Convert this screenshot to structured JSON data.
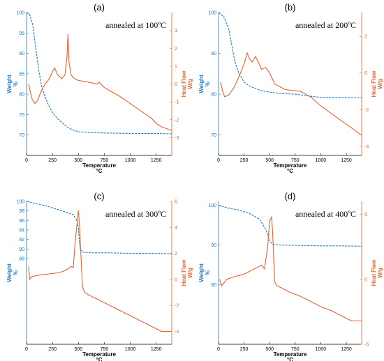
{
  "colors": {
    "weight": "#1f78c8",
    "heat": "#e8612c",
    "axis": "#000000"
  },
  "chart_data": [
    {
      "type": "line",
      "panel_label": "(a)",
      "annotation": "annealed at 100ºC",
      "xlabel": "Temperature",
      "xunit": "°C",
      "xlim": [
        0,
        1400
      ],
      "xticks": [
        0,
        250,
        500,
        750,
        1000,
        1250
      ],
      "left_axis": {
        "label": "Weight",
        "unit": "%",
        "ylim": [
          65,
          100
        ],
        "ticks": [
          70,
          75,
          80,
          85,
          90,
          95,
          100
        ]
      },
      "right_axis": {
        "label": "Heat Flow",
        "unit": "W/g",
        "ylim": [
          -4,
          4
        ],
        "ticks": [
          -3,
          -2,
          -1,
          0,
          1,
          2,
          3
        ]
      },
      "series": [
        {
          "axis": "left",
          "x": [
            0,
            30,
            60,
            90,
            120,
            150,
            200,
            250,
            300,
            350,
            400,
            450,
            500,
            600,
            750,
            1000,
            1250,
            1400
          ],
          "y": [
            100,
            99.5,
            97,
            91,
            85.5,
            81.5,
            78,
            75.5,
            74,
            72.8,
            71.8,
            71.2,
            70.8,
            70.6,
            70.5,
            70.4,
            70.4,
            70.3
          ]
        },
        {
          "axis": "right",
          "x": [
            20,
            50,
            80,
            110,
            140,
            180,
            220,
            250,
            270,
            300,
            340,
            370,
            390,
            400,
            410,
            430,
            460,
            500,
            600,
            680,
            700,
            750,
            900,
            1000,
            1100,
            1200,
            1250,
            1300,
            1400
          ],
          "y": [
            0,
            -0.8,
            -1.1,
            -0.9,
            -0.4,
            0,
            0.3,
            0.7,
            0.9,
            0.5,
            0.3,
            0.5,
            1.5,
            2.8,
            1.2,
            0.5,
            0.3,
            0.2,
            0.1,
            0,
            0.1,
            -0.2,
            -0.7,
            -1.1,
            -1.5,
            -1.9,
            -2.2,
            -2.4,
            -2.6
          ]
        }
      ]
    },
    {
      "type": "line",
      "panel_label": "(b)",
      "annotation": "annealed at 200ºC",
      "xlabel": "Temperature",
      "xunit": "°C",
      "xlim": [
        0,
        1400
      ],
      "xticks": [
        0,
        250,
        500,
        750,
        1000,
        1250
      ],
      "left_axis": {
        "label": "Weight",
        "unit": "%",
        "ylim": [
          65,
          100
        ],
        "ticks": [
          70,
          80,
          90,
          100
        ]
      },
      "right_axis": {
        "label": "Heat Flow",
        "unit": "W/g",
        "ylim": [
          -4.5,
          3.3
        ],
        "ticks": [
          -4,
          -2,
          0,
          2
        ]
      },
      "series": [
        {
          "axis": "left",
          "x": [
            0,
            50,
            100,
            130,
            160,
            200,
            250,
            300,
            400,
            500,
            600,
            750,
            900,
            1000,
            1200,
            1400
          ],
          "y": [
            100,
            99,
            96,
            92,
            88,
            85,
            83,
            82,
            81,
            80.5,
            80.2,
            80,
            79.5,
            79.2,
            79.2,
            79.1
          ]
        },
        {
          "axis": "right",
          "x": [
            20,
            40,
            60,
            100,
            150,
            200,
            250,
            280,
            300,
            330,
            360,
            380,
            420,
            460,
            500,
            550,
            650,
            800,
            900,
            1000,
            1100,
            1200,
            1300,
            1400
          ],
          "y": [
            -0.5,
            -1,
            -1.3,
            -1.2,
            -0.8,
            -0.2,
            0.5,
            1.1,
            0.8,
            0.6,
            0.9,
            0.7,
            0.2,
            0.3,
            0,
            -0.6,
            -0.9,
            -1,
            -1.3,
            -1.8,
            -2.2,
            -2.6,
            -3,
            -3.4
          ]
        }
      ]
    },
    {
      "type": "line",
      "panel_label": "(c)",
      "annotation": "annealed at 300ºC",
      "xlabel": "Temperature",
      "xunit": "°C",
      "xlim": [
        0,
        1400
      ],
      "xticks": [
        0,
        250,
        500,
        750,
        1000,
        1250
      ],
      "left_axis": {
        "label": "Weight",
        "unit": "%",
        "ylim": [
          70,
          100
        ],
        "ticks": [
          88,
          90,
          92,
          94,
          96,
          98,
          100
        ]
      },
      "right_axis": {
        "label": "Heat Flow",
        "unit": "W/g",
        "ylim": [
          -5,
          6
        ],
        "ticks": [
          -4,
          -2,
          0,
          2,
          4,
          6
        ]
      },
      "series": [
        {
          "axis": "left",
          "x": [
            0,
            100,
            200,
            300,
            400,
            450,
            480,
            500,
            510,
            520,
            550,
            650,
            800,
            1000,
            1200,
            1400
          ],
          "y": [
            100,
            99.5,
            99,
            98.3,
            97.6,
            97.2,
            96.2,
            94.5,
            91.5,
            89.8,
            89.3,
            89.2,
            89.2,
            89.1,
            89.1,
            89
          ]
        },
        {
          "axis": "right",
          "x": [
            20,
            30,
            50,
            100,
            200,
            300,
            350,
            400,
            430,
            450,
            470,
            490,
            500,
            510,
            520,
            540,
            560,
            600,
            700,
            800,
            900,
            1000,
            1100,
            1200,
            1300,
            1400
          ],
          "y": [
            1,
            0,
            0.2,
            0.3,
            0.4,
            0.5,
            0.6,
            0.8,
            1,
            0.9,
            3,
            4.5,
            5.3,
            4.2,
            2.5,
            -0.6,
            -1,
            -1.2,
            -1.6,
            -2,
            -2.4,
            -2.8,
            -3.2,
            -3.6,
            -4,
            -4
          ]
        }
      ]
    },
    {
      "type": "line",
      "panel_label": "(d)",
      "annotation": "annealed at 400ºC",
      "xlabel": "Temperature",
      "xunit": "°C",
      "xlim": [
        0,
        1400
      ],
      "xticks": [
        0,
        250,
        500,
        750,
        1000,
        1250
      ],
      "left_axis": {
        "label": "Weight",
        "unit": "%",
        "ylim": [
          65,
          101
        ],
        "ticks": [
          80,
          90,
          100
        ]
      },
      "right_axis": {
        "label": "Heat Flow",
        "unit": "W/g",
        "ylim": [
          -5,
          6
        ],
        "ticks": [
          -5,
          0,
          5
        ]
      },
      "series": [
        {
          "axis": "left",
          "x": [
            0,
            100,
            200,
            300,
            400,
            450,
            480,
            500,
            520,
            550,
            600,
            800,
            1000,
            1200,
            1400
          ],
          "y": [
            100,
            99.3,
            98.8,
            98,
            96.5,
            94.5,
            92.8,
            91,
            90.5,
            90.1,
            90,
            89.9,
            89.8,
            89.8,
            89.7
          ]
        },
        {
          "axis": "right",
          "x": [
            10,
            30,
            50,
            80,
            150,
            250,
            350,
            400,
            420,
            450,
            480,
            500,
            520,
            530,
            540,
            550,
            570,
            600,
            700,
            800,
            900,
            1000,
            1100,
            1200,
            1300,
            1400
          ],
          "y": [
            0,
            -0.5,
            -0.3,
            0,
            0.2,
            0.4,
            0.8,
            1,
            1.1,
            0.8,
            2.5,
            4.5,
            4.8,
            3.5,
            1.5,
            -0.2,
            -0.5,
            -0.6,
            -1,
            -1.3,
            -1.7,
            -2.1,
            -2.4,
            -2.8,
            -3.2,
            -3.2
          ]
        }
      ]
    }
  ]
}
